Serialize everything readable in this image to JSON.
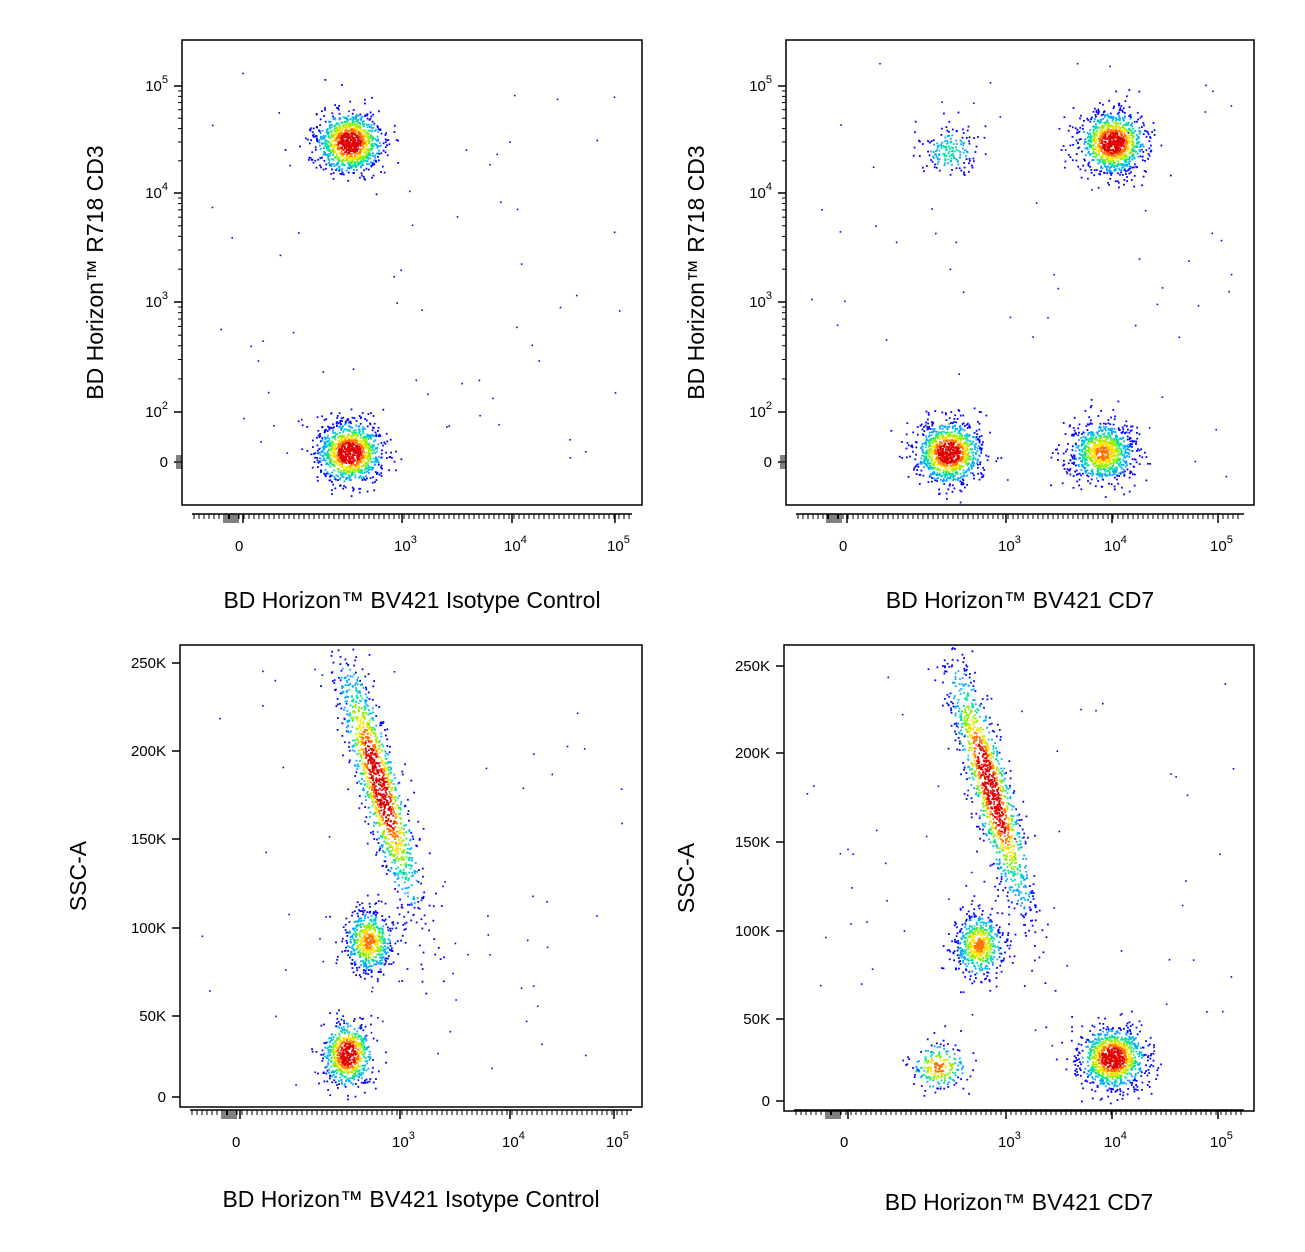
{
  "palette": [
    "#0000ff",
    "#00aaff",
    "#00e0a0",
    "#90f000",
    "#ffe000",
    "#ff7000",
    "#e00000"
  ],
  "chart_data": [
    {
      "type": "scatter",
      "id": "isotype-cd3",
      "xlabel": "BD Horizon™ BV421 Isotype Control",
      "ylabel": "BD Horizon™ R718 CD3",
      "x_scale": "biexponential",
      "y_scale": "biexponential",
      "x_ticks": [
        {
          "base": "0",
          "exp": ""
        },
        {
          "base": "10",
          "exp": "3"
        },
        {
          "base": "10",
          "exp": "4"
        },
        {
          "base": "10",
          "exp": "5"
        }
      ],
      "y_ticks": [
        {
          "base": "0",
          "exp": ""
        },
        {
          "base": "10",
          "exp": "2"
        },
        {
          "base": "10",
          "exp": "3"
        },
        {
          "base": "10",
          "exp": "4"
        },
        {
          "base": "10",
          "exp": "5"
        }
      ],
      "populations": [
        {
          "x": 100,
          "y": 30000,
          "size": "large",
          "density": "high"
        },
        {
          "x": 100,
          "y": 20,
          "size": "large",
          "density": "high"
        }
      ]
    },
    {
      "type": "scatter",
      "id": "cd7-cd3",
      "xlabel": "BD Horizon™ BV421 CD7",
      "ylabel": "BD Horizon™ R718 CD3",
      "x_scale": "biexponential",
      "y_scale": "biexponential",
      "x_ticks": [
        {
          "base": "0",
          "exp": ""
        },
        {
          "base": "10",
          "exp": "3"
        },
        {
          "base": "10",
          "exp": "4"
        },
        {
          "base": "10",
          "exp": "5"
        }
      ],
      "y_ticks": [
        {
          "base": "0",
          "exp": ""
        },
        {
          "base": "10",
          "exp": "2"
        },
        {
          "base": "10",
          "exp": "3"
        },
        {
          "base": "10",
          "exp": "4"
        },
        {
          "base": "10",
          "exp": "5"
        }
      ],
      "populations": [
        {
          "x": 10000,
          "y": 30000,
          "size": "large",
          "density": "high"
        },
        {
          "x": 80,
          "y": 25000,
          "size": "small",
          "density": "low"
        },
        {
          "x": 80,
          "y": 20,
          "size": "large",
          "density": "high"
        },
        {
          "x": 8000,
          "y": 20,
          "size": "large",
          "density": "medium"
        }
      ]
    },
    {
      "type": "scatter",
      "id": "isotype-ssc",
      "xlabel": "BD Horizon™ BV421 Isotype Control",
      "ylabel": "SSC-A",
      "x_scale": "biexponential",
      "y_scale": "linear",
      "x_ticks": [
        {
          "base": "0",
          "exp": ""
        },
        {
          "base": "10",
          "exp": "3"
        },
        {
          "base": "10",
          "exp": "4"
        },
        {
          "base": "10",
          "exp": "5"
        }
      ],
      "y_ticks": [
        {
          "base": "0",
          "exp": ""
        },
        {
          "base": "50K",
          "exp": ""
        },
        {
          "base": "100K",
          "exp": ""
        },
        {
          "base": "150K",
          "exp": ""
        },
        {
          "base": "200K",
          "exp": ""
        },
        {
          "base": "250K",
          "exp": ""
        }
      ],
      "ylim": [
        0,
        250000
      ],
      "populations": [
        {
          "x": 100,
          "y": 25000,
          "size": "medium",
          "density": "high"
        },
        {
          "x": 400,
          "y": 180000,
          "size": "elongated",
          "density": "high"
        },
        {
          "x": 250,
          "y": 90000,
          "size": "medium",
          "density": "medium"
        }
      ]
    },
    {
      "type": "scatter",
      "id": "cd7-ssc",
      "xlabel": "BD Horizon™ BV421 CD7",
      "ylabel": "SSC-A",
      "x_scale": "biexponential",
      "y_scale": "linear",
      "x_ticks": [
        {
          "base": "0",
          "exp": ""
        },
        {
          "base": "10",
          "exp": "3"
        },
        {
          "base": "10",
          "exp": "4"
        },
        {
          "base": "10",
          "exp": "5"
        }
      ],
      "y_ticks": [
        {
          "base": "0",
          "exp": ""
        },
        {
          "base": "50K",
          "exp": ""
        },
        {
          "base": "100K",
          "exp": ""
        },
        {
          "base": "150K",
          "exp": ""
        },
        {
          "base": "200K",
          "exp": ""
        },
        {
          "base": "250K",
          "exp": ""
        }
      ],
      "ylim": [
        0,
        250000
      ],
      "populations": [
        {
          "x": 500,
          "y": 180000,
          "size": "elongated",
          "density": "high"
        },
        {
          "x": 300,
          "y": 90000,
          "size": "medium",
          "density": "medium"
        },
        {
          "x": 50,
          "y": 20000,
          "size": "small",
          "density": "medium"
        },
        {
          "x": 10000,
          "y": 25000,
          "size": "large",
          "density": "high"
        }
      ]
    }
  ]
}
